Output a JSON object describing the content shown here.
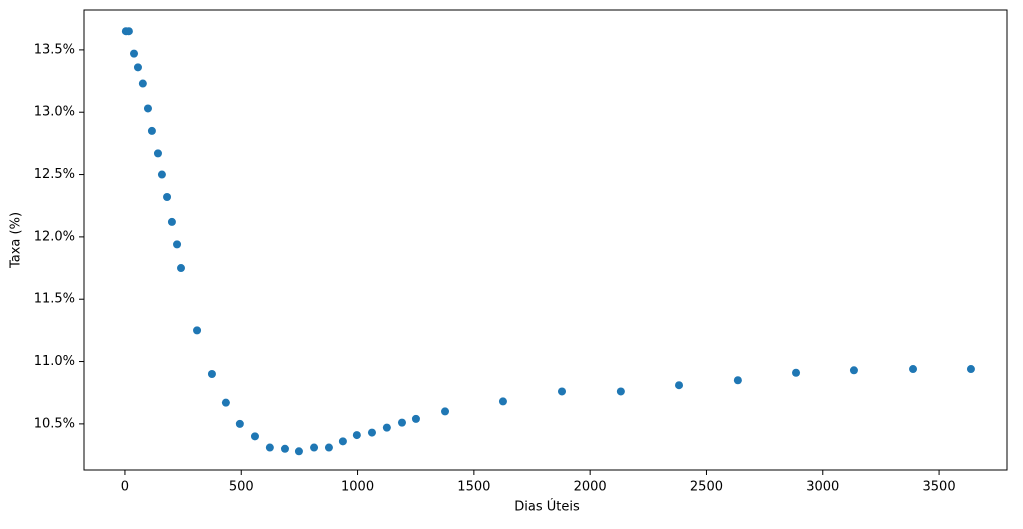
{
  "chart_data": {
    "type": "scatter",
    "x_label": "Dias Úteis",
    "y_label": "Taxa (%)",
    "series": [
      {
        "color": "#1f77b4",
        "x": [
          4,
          17,
          39,
          56,
          77,
          99,
          116,
          142,
          159,
          181,
          202,
          224,
          241,
          310,
          374,
          434,
          494,
          559,
          623,
          688,
          748,
          813,
          877,
          937,
          997,
          1062,
          1126,
          1191,
          1251,
          1376,
          1625,
          1879,
          2132,
          2382,
          2635,
          2885,
          3134,
          3388,
          3637
        ],
        "values": [
          13.65,
          13.65,
          13.47,
          13.36,
          13.23,
          13.03,
          12.85,
          12.67,
          12.5,
          12.32,
          12.12,
          11.94,
          11.75,
          11.25,
          10.9,
          10.67,
          10.5,
          10.4,
          10.31,
          10.3,
          10.28,
          10.31,
          10.31,
          10.36,
          10.41,
          10.43,
          10.47,
          10.51,
          10.54,
          10.6,
          10.68,
          10.76,
          10.76,
          10.81,
          10.85,
          10.91,
          10.93,
          10.94,
          10.94
        ]
      }
    ],
    "xlim": [
      -176,
      3792
    ],
    "ylim": [
      10.13,
      13.82
    ],
    "xticks": [
      0,
      500,
      1000,
      1500,
      2000,
      2500,
      3000,
      3500
    ],
    "yticks": [
      {
        "value": 10.5,
        "label": "10.5%"
      },
      {
        "value": 11,
        "label": "11.0%"
      },
      {
        "value": 11.5,
        "label": "11.5%"
      },
      {
        "value": 12,
        "label": "12.0%"
      },
      {
        "value": 12.5,
        "label": "12.5%"
      },
      {
        "value": 13,
        "label": "13.0%"
      },
      {
        "value": 13.5,
        "label": "13.5%"
      }
    ]
  }
}
